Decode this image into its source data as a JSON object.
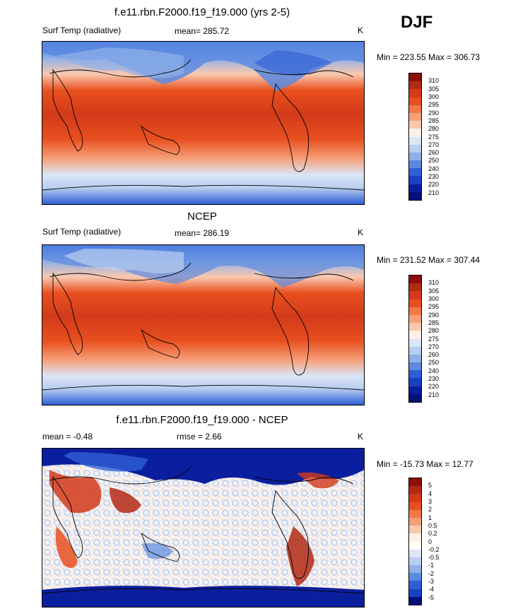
{
  "season": "DJF",
  "panels": [
    {
      "title": "f.e11.rbn.F2000.f19_f19.000 (yrs 2-5)",
      "variable": "Surf Temp (radiative)",
      "stat": "mean= 285.72",
      "units": "K",
      "minmax": "Min = 223.55 Max = 306.73",
      "colorbar_labels": [
        "310",
        "305",
        "300",
        "295",
        "290",
        "285",
        "280",
        "275",
        "270",
        "260",
        "250",
        "240",
        "230",
        "220",
        "210"
      ]
    },
    {
      "title": "NCEP",
      "variable": "Surf Temp (radiative)",
      "stat": "mean= 286.19",
      "units": "K",
      "minmax": "Min = 231.52 Max = 307.44",
      "colorbar_labels": [
        "310",
        "305",
        "300",
        "295",
        "290",
        "285",
        "280",
        "275",
        "270",
        "260",
        "250",
        "240",
        "230",
        "220",
        "210"
      ]
    },
    {
      "title": "f.e11.rbn.F2000.f19_f19.000 - NCEP",
      "stat": "mean =  -0.48",
      "rmse": "rmse =   2.66",
      "units": "K",
      "minmax": "Min = -15.73 Max =  12.77",
      "colorbar_labels": [
        "5",
        "4",
        "3",
        "2",
        "1",
        "0.5",
        "0.2",
        "0",
        "-0.2",
        "-0.5",
        "-1",
        "-2",
        "-3",
        "-4",
        "-5"
      ]
    }
  ],
  "colors": {
    "abs_scale": [
      "#8b0f0b",
      "#b32a14",
      "#d33a1a",
      "#e8501f",
      "#f2784a",
      "#f6a07a",
      "#fac8ae",
      "#fdf0e6",
      "#dbe6f7",
      "#b9cdef",
      "#8fb0e8",
      "#5c8ae0",
      "#2f5fd6",
      "#1a3fc4",
      "#0b1f9e",
      "#06107a"
    ],
    "diff_scale": [
      "#8b0f0b",
      "#b32a14",
      "#d33a1a",
      "#e8501f",
      "#f2784a",
      "#f6a07a",
      "#fac8ae",
      "#fdf0e6",
      "#ffffff",
      "#dbe6f7",
      "#b9cdef",
      "#8fb0e8",
      "#5c8ae0",
      "#2f5fd6",
      "#1a3fc4",
      "#06107a"
    ]
  }
}
